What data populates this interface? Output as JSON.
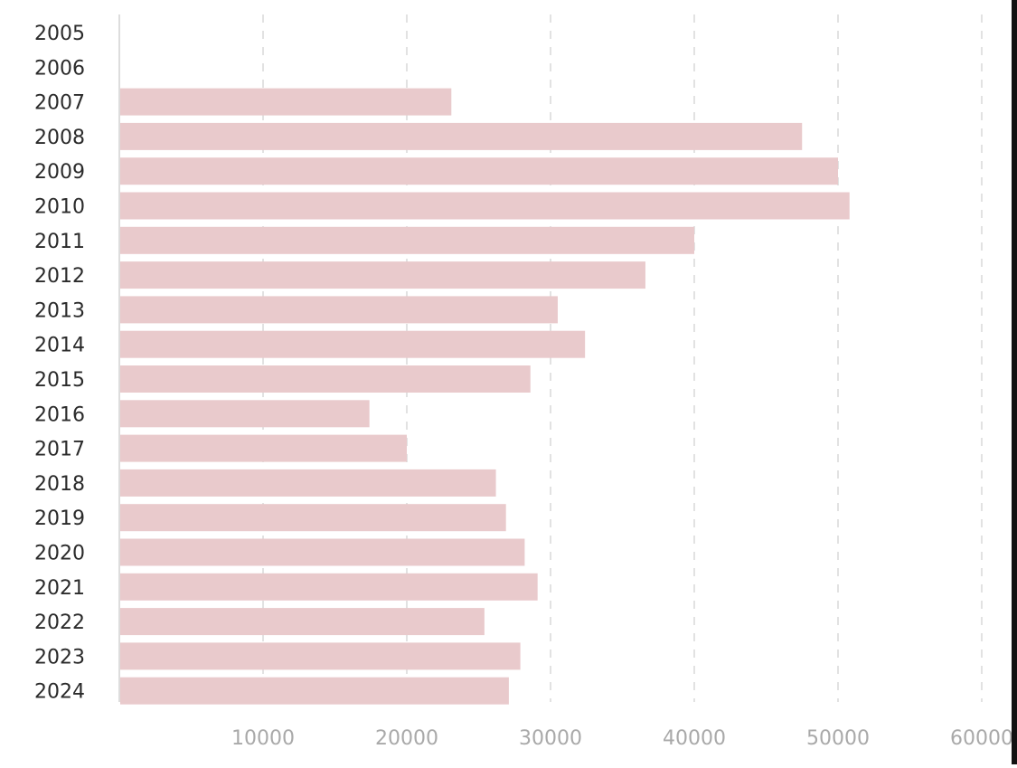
{
  "chart_data": {
    "type": "bar",
    "orientation": "horizontal",
    "categories": [
      "2005",
      "2006",
      "2007",
      "2008",
      "2009",
      "2010",
      "2011",
      "2012",
      "2013",
      "2014",
      "2015",
      "2016",
      "2017",
      "2018",
      "2019",
      "2020",
      "2021",
      "2022",
      "2023",
      "2024"
    ],
    "values": [
      0,
      0,
      23100,
      47500,
      50000,
      50800,
      40000,
      36600,
      30500,
      32400,
      28600,
      17400,
      20000,
      26200,
      26900,
      28200,
      29100,
      25400,
      27900,
      27100
    ],
    "xlim": [
      0,
      60000
    ],
    "xticks": [
      10000,
      20000,
      30000,
      40000,
      50000,
      60000
    ],
    "xtick_labels": [
      "10000",
      "20000",
      "30000",
      "40000",
      "50000",
      "60000"
    ],
    "grid": "vertical dashed",
    "title": "",
    "xlabel": "",
    "ylabel": "",
    "colors": {
      "bar": "#e9cacc",
      "grid": "#e2e2e2",
      "axis": "#dddddd",
      "ytick_text": "#2b2b2b",
      "xtick_text": "#a9a9a9"
    }
  }
}
